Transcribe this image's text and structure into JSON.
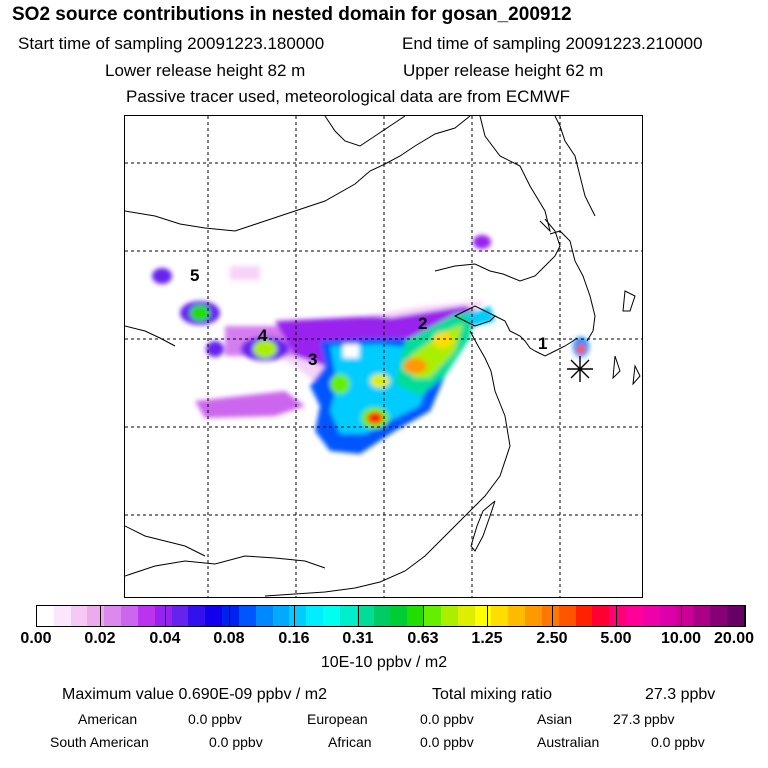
{
  "header": {
    "title": "SO2 source contributions in nested domain for gosan_200912",
    "start_label": "Start time of sampling 20091223.180000",
    "end_label": "End time of sampling 20091223.210000",
    "lower_label": "Lower release height   82 m",
    "upper_label": "Upper release height   62 m",
    "note": "Passive tracer used, meteorological data are from ECMWF"
  },
  "map": {
    "source_labels": [
      "1",
      "2",
      "3",
      "4",
      "5"
    ],
    "receptor_marker": "asterisk-icon"
  },
  "colorbar": {
    "tick_labels": [
      "0.00",
      "0.02",
      "0.04",
      "0.08",
      "0.16",
      "0.31",
      "0.63",
      "1.25",
      "2.50",
      "5.00",
      "10.00",
      "20.00"
    ],
    "colors": [
      "#ffffff",
      "#fbe6fb",
      "#f5c8f5",
      "#eeaaee",
      "#dd88ee",
      "#cc66ee",
      "#bb33ee",
      "#9922ee",
      "#6622ee",
      "#3311ee",
      "#1100ee",
      "#0022ee",
      "#0055ff",
      "#0088ff",
      "#00aaff",
      "#00ccff",
      "#00eeff",
      "#00ffee",
      "#00eecc",
      "#00dd99",
      "#00cc66",
      "#00cc33",
      "#22dd00",
      "#66ee00",
      "#aaee00",
      "#ddee00",
      "#ffff00",
      "#ffdd00",
      "#ffbb00",
      "#ff9900",
      "#ff7700",
      "#ff5500",
      "#ff2200",
      "#ff0033",
      "#ff0077",
      "#ff0099",
      "#ee00aa",
      "#dd00aa",
      "#cc0099",
      "#aa0088",
      "#880077",
      "#660066"
    ],
    "units": "10E-10 ppbv / m2"
  },
  "stats": {
    "max_label": "Maximum value  0.690E-09 ppbv / m2",
    "total_label": "Total mixing ratio",
    "total_value": "27.3 ppbv"
  },
  "regions": [
    {
      "name": "American",
      "value": "0.0 ppbv"
    },
    {
      "name": "European",
      "value": "0.0 ppbv"
    },
    {
      "name": "Asian",
      "value": "27.3 ppbv"
    },
    {
      "name": "South American",
      "value": "0.0 ppbv"
    },
    {
      "name": "African",
      "value": "0.0 ppbv"
    },
    {
      "name": "Australian",
      "value": "0.0 ppbv"
    }
  ]
}
